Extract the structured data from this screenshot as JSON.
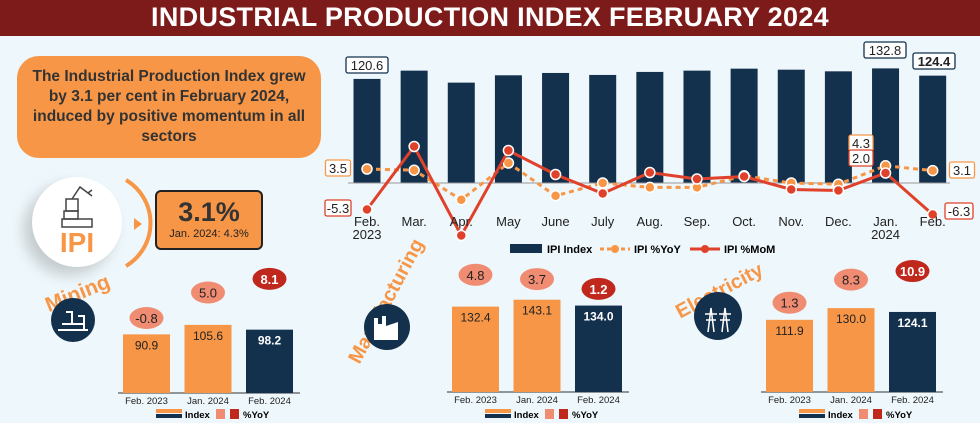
{
  "title": "INDUSTRIAL PRODUCTION INDEX FEBRUARY 2024",
  "summary": "The Industrial Production Index grew by 3.1 per cent in February 2024, induced by positive momentum in all sectors",
  "ipi": {
    "label": "IPI",
    "value": "3.1%",
    "previous": "Jan. 2024: 4.3%"
  },
  "colors": {
    "navy": "#13304d",
    "orange": "#f79646",
    "red": "#e0412a",
    "salmon": "#f08c72",
    "darkred": "#c0281e",
    "title_bg": "#7d1a1a"
  },
  "chart_data": [
    {
      "type": "bar+line",
      "categories": [
        "Feb. 2023",
        "Mar.",
        "Apr.",
        "May",
        "June",
        "July",
        "Aug.",
        "Sep.",
        "Oct.",
        "Nov.",
        "Dec.",
        "Jan. 2024",
        "Feb."
      ],
      "series": [
        {
          "name": "IPI Index",
          "type": "bar",
          "values": [
            120.6,
            130.2,
            116.3,
            124.8,
            127.5,
            125.2,
            128.7,
            130.2,
            132.5,
            131.3,
            129.4,
            132.8,
            124.4
          ],
          "labels": {
            "0": "120.6",
            "11": "132.8",
            "12": "124.4"
          }
        },
        {
          "name": "IPI %YoY",
          "type": "line-dashed",
          "values": [
            3.5,
            3.2,
            -4.2,
            5.0,
            -3.2,
            0.0,
            -1.1,
            -1.1,
            1.8,
            0.0,
            -0.3,
            4.3,
            3.1
          ],
          "labels": {
            "0": "3.5",
            "11": "4.3",
            "12": "3.1"
          }
        },
        {
          "name": "IPI %MoM",
          "type": "line",
          "values": [
            -5.3,
            7.3,
            -10.5,
            6.5,
            1.7,
            -2.1,
            2.1,
            0.8,
            1.3,
            -1.3,
            -1.5,
            2.0,
            -6.3
          ],
          "labels": {
            "0": "-5.3",
            "11": "2.0",
            "12": "-6.3"
          }
        }
      ],
      "legend": "bottom"
    },
    {
      "type": "bar",
      "title": "Mining",
      "categories": [
        "Feb. 2023",
        "Jan. 2024",
        "Feb. 2024"
      ],
      "index": [
        90.9,
        105.6,
        98.2
      ],
      "yoy": [
        -0.8,
        5.0,
        8.1
      ],
      "legend": [
        "Index",
        "%YoY"
      ]
    },
    {
      "type": "bar",
      "title": "Manufacturing",
      "categories": [
        "Feb. 2023",
        "Jan. 2024",
        "Feb. 2024"
      ],
      "index": [
        132.4,
        143.1,
        134.0
      ],
      "yoy": [
        4.8,
        3.7,
        1.2
      ],
      "legend": [
        "Index",
        "%YoY"
      ]
    },
    {
      "type": "bar",
      "title": "Electricity",
      "categories": [
        "Feb. 2023",
        "Jan. 2024",
        "Feb. 2024"
      ],
      "index": [
        111.9,
        130.0,
        124.1
      ],
      "yoy": [
        1.3,
        8.3,
        10.9
      ],
      "legend": [
        "Index",
        "%YoY"
      ]
    }
  ]
}
